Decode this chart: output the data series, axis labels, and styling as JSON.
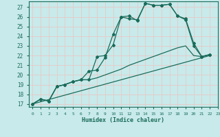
{
  "title": "",
  "xlabel": "Humidex (Indice chaleur)",
  "ylabel": "",
  "xlim": [
    -0.5,
    23
  ],
  "ylim": [
    16.7,
    27.6
  ],
  "yticks": [
    17,
    18,
    19,
    20,
    21,
    22,
    23,
    24,
    25,
    26,
    27
  ],
  "xticks": [
    0,
    1,
    2,
    3,
    4,
    5,
    6,
    7,
    8,
    9,
    10,
    11,
    12,
    13,
    14,
    15,
    16,
    17,
    18,
    19,
    20,
    21,
    22,
    23
  ],
  "background_color": "#c8eaea",
  "grid_color": "#e8c8c8",
  "line_color": "#1a6b5a",
  "lines": [
    {
      "x": [
        0,
        1,
        2,
        3,
        4,
        5,
        6,
        7,
        8,
        9,
        10,
        11,
        12,
        13,
        14,
        15,
        16,
        17,
        18,
        19,
        20,
        21,
        22
      ],
      "y": [
        17.0,
        17.5,
        17.3,
        18.8,
        19.0,
        19.3,
        19.5,
        19.5,
        21.9,
        22.0,
        23.1,
        26.0,
        26.1,
        25.6,
        27.4,
        27.2,
        27.2,
        27.3,
        26.1,
        25.7,
        23.0,
        21.9,
        22.1
      ],
      "marker": "D",
      "markersize": 2.0,
      "linewidth": 0.9
    },
    {
      "x": [
        0,
        1,
        2,
        3,
        4,
        5,
        6,
        7,
        8,
        9,
        10,
        11,
        12,
        13,
        14,
        15,
        16,
        17,
        18,
        19,
        20,
        21,
        22
      ],
      "y": [
        17.0,
        17.5,
        17.3,
        18.8,
        19.0,
        19.3,
        19.5,
        20.4,
        20.5,
        21.8,
        24.2,
        26.0,
        25.8,
        25.7,
        27.4,
        27.2,
        27.2,
        27.3,
        26.1,
        25.8,
        23.3,
        21.9,
        22.1
      ],
      "marker": "D",
      "markersize": 2.0,
      "linewidth": 0.9
    },
    {
      "x": [
        0,
        22
      ],
      "y": [
        17.0,
        22.0
      ],
      "marker": null,
      "markersize": 0,
      "linewidth": 0.9
    },
    {
      "x": [
        0,
        1,
        2,
        3,
        4,
        5,
        6,
        7,
        8,
        9,
        10,
        11,
        12,
        13,
        14,
        15,
        16,
        17,
        18,
        19,
        20,
        21,
        22
      ],
      "y": [
        17.0,
        17.5,
        17.3,
        18.8,
        19.0,
        19.3,
        19.5,
        19.5,
        19.7,
        20.0,
        20.3,
        20.6,
        21.0,
        21.3,
        21.6,
        21.9,
        22.2,
        22.5,
        22.8,
        23.0,
        22.0,
        21.9,
        22.1
      ],
      "marker": null,
      "markersize": 0,
      "linewidth": 0.9
    }
  ]
}
